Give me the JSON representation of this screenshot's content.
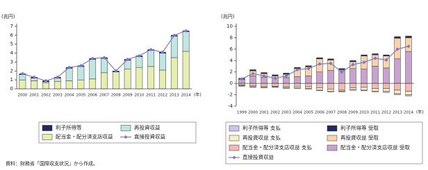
{
  "chart_data": [
    {
      "type": "bar",
      "stacked": true,
      "y_label": "(兆円)",
      "x_label": "(年)",
      "categories": [
        "2000",
        "2001",
        "2002",
        "2003",
        "2004",
        "2005",
        "2006",
        "2007",
        "2008",
        "2009",
        "2010",
        "2011",
        "2012",
        "2013",
        "2014"
      ],
      "ylim": [
        0,
        7
      ],
      "yticks": [
        0,
        1,
        2,
        3,
        4,
        5,
        6,
        7
      ],
      "grid": false,
      "series": [
        {
          "name": "利子所得等",
          "color": "#1f2a5c",
          "values": [
            0.1,
            0.1,
            0.1,
            0.1,
            0.1,
            0.1,
            0.1,
            0.1,
            0.1,
            0.1,
            0.1,
            0.1,
            0.1,
            0.1,
            0.1
          ]
        },
        {
          "name": "再投資収益",
          "color": "#bfe6e0",
          "values": [
            0.6,
            0.3,
            0.1,
            0.4,
            1.4,
            1.5,
            2.2,
            1.6,
            0.0,
            1.0,
            1.2,
            1.8,
            1.9,
            2.4,
            2.2
          ]
        },
        {
          "name": "配当金・配分済支店収益",
          "color": "#e6efb0",
          "values": [
            1.0,
            0.9,
            0.7,
            0.8,
            0.9,
            1.0,
            1.1,
            1.8,
            1.9,
            2.2,
            2.4,
            2.5,
            2.1,
            3.5,
            4.2
          ]
        },
        {
          "name": "直接投資収益",
          "type": "line",
          "color": "#7b78c8",
          "values": [
            1.7,
            1.3,
            0.9,
            1.3,
            2.4,
            2.6,
            3.4,
            3.5,
            2.0,
            3.3,
            3.7,
            4.4,
            4.1,
            6.0,
            6.5
          ]
        }
      ]
    },
    {
      "type": "bar",
      "stacked": true,
      "y_label": "(兆円)",
      "x_label": "(年)",
      "categories": [
        "1999",
        "2000",
        "2001",
        "2002",
        "2003",
        "2004",
        "2005",
        "2006",
        "2007",
        "2008",
        "2009",
        "2010",
        "2011",
        "2012",
        "2013",
        "2014"
      ],
      "ylim": [
        -4,
        10
      ],
      "yticks": [
        -4,
        -2,
        0,
        2,
        4,
        6,
        8,
        10
      ],
      "grid": false,
      "series": [
        {
          "name": "利子所得等 支払",
          "color": "#c9c6ea",
          "values": [
            -0.1,
            -0.1,
            -0.1,
            -0.1,
            -0.1,
            -0.1,
            -0.1,
            -0.1,
            -0.1,
            -0.1,
            -0.1,
            -0.1,
            -0.1,
            -0.2,
            -0.2,
            -0.2
          ]
        },
        {
          "name": "利子所得等 受取",
          "color": "#1f2a5c",
          "values": [
            0.1,
            0.2,
            0.2,
            0.2,
            0.2,
            0.2,
            0.2,
            0.2,
            0.2,
            0.2,
            0.2,
            0.2,
            0.2,
            0.2,
            0.3,
            0.3
          ]
        },
        {
          "name": "再投資収益 支払",
          "color": "#f5f0c2",
          "values": [
            -0.1,
            -0.2,
            -0.2,
            -0.1,
            -0.2,
            -0.3,
            -0.3,
            -0.4,
            -0.4,
            -0.2,
            -0.3,
            -0.5,
            -0.5,
            -0.5,
            -0.6,
            -0.6
          ]
        },
        {
          "name": "再投資収益 受取",
          "color": "#fbd3a8",
          "values": [
            0.1,
            0.9,
            0.6,
            0.3,
            0.6,
            1.4,
            1.6,
            2.3,
            1.8,
            0.0,
            1.2,
            2.3,
            2.0,
            2.1,
            3.6,
            2.4
          ]
        },
        {
          "name": "配当金・配分済支店収益 支払",
          "color": "#f3b9b2",
          "values": [
            -0.3,
            -0.4,
            -0.5,
            -0.5,
            -0.6,
            -0.5,
            -0.6,
            -0.8,
            -1.0,
            -1.2,
            -0.8,
            -0.7,
            -0.9,
            -0.9,
            -1.2,
            -1.4
          ]
        },
        {
          "name": "配当金・配分済支店収益 受取",
          "color": "#c8a3cf",
          "values": [
            0.7,
            1.3,
            1.1,
            1.0,
            1.0,
            1.2,
            1.3,
            2.0,
            2.3,
            2.4,
            2.6,
            2.5,
            3.0,
            2.7,
            4.3,
            5.6
          ]
        },
        {
          "name": "直接投資収益",
          "type": "line",
          "color": "#7b78c8",
          "values": [
            0.8,
            1.7,
            1.3,
            0.9,
            1.3,
            2.4,
            2.6,
            3.4,
            3.5,
            2.0,
            3.3,
            3.7,
            4.4,
            4.1,
            6.0,
            6.5
          ]
        }
      ]
    }
  ],
  "footer": "資料：財務省「国際収支状況」から作成。"
}
